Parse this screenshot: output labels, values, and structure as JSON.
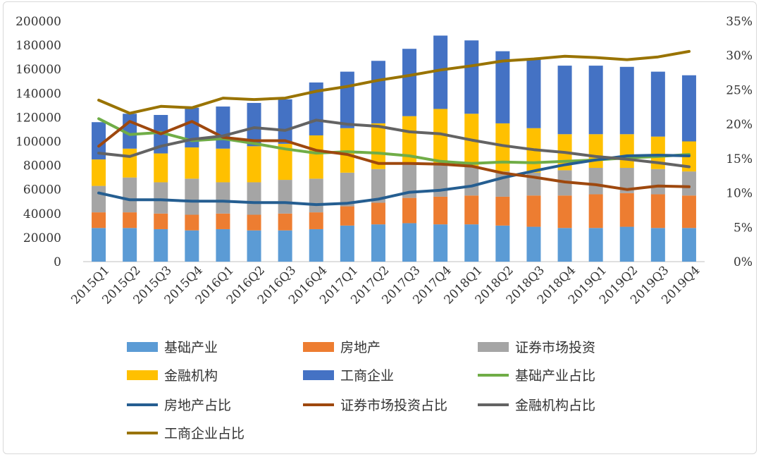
{
  "chart_data": {
    "type": "bar",
    "stacked": true,
    "categories": [
      "2015Q1",
      "2015Q2",
      "2015Q3",
      "2015Q4",
      "2016Q1",
      "2016Q2",
      "2016Q3",
      "2016Q4",
      "2017Q1",
      "2017Q2",
      "2017Q3",
      "2017Q4",
      "2018Q1",
      "2018Q2",
      "2018Q3",
      "2018Q4",
      "2019Q1",
      "2019Q2",
      "2019Q3",
      "2019Q4"
    ],
    "ylim": [
      0,
      200000
    ],
    "y_ticks": [
      "0",
      "20000",
      "40000",
      "60000",
      "80000",
      "100000",
      "120000",
      "140000",
      "160000",
      "180000",
      "200000"
    ],
    "y2lim": [
      0,
      35
    ],
    "y2_ticks": [
      "0%",
      "5%",
      "10%",
      "15%",
      "20%",
      "25%",
      "30%",
      "35%"
    ],
    "grid": false,
    "legend_position": "bottom",
    "series": [
      {
        "name": "基础产业",
        "type": "bar",
        "color": "#5B9BD5",
        "values": [
          28000,
          28000,
          27000,
          26000,
          27000,
          26000,
          26000,
          27000,
          30000,
          31000,
          32000,
          31000,
          31000,
          30000,
          29000,
          28000,
          28000,
          29000,
          28000,
          28000
        ]
      },
      {
        "name": "房地产",
        "type": "bar",
        "color": "#ED7D31",
        "values": [
          13000,
          13000,
          13000,
          13000,
          13000,
          13000,
          14000,
          14000,
          16000,
          18000,
          21000,
          23000,
          24000,
          24000,
          26000,
          27000,
          28000,
          28000,
          28000,
          27000
        ]
      },
      {
        "name": "证券市场投资",
        "type": "bar",
        "color": "#A5A5A5",
        "values": [
          22000,
          29000,
          26000,
          30000,
          26000,
          27000,
          28000,
          28000,
          28000,
          28000,
          28000,
          27000,
          24000,
          21000,
          19000,
          21000,
          22000,
          21000,
          21000,
          20000
        ]
      },
      {
        "name": "金融机构",
        "type": "bar",
        "color": "#FFC000",
        "values": [
          22000,
          24000,
          24000,
          26000,
          28000,
          30000,
          30000,
          36000,
          37000,
          38000,
          40000,
          46000,
          44000,
          40000,
          37000,
          30000,
          28000,
          28000,
          27000,
          25000
        ]
      },
      {
        "name": "工商企业",
        "type": "bar",
        "color": "#4472C4",
        "values": [
          31000,
          29000,
          32000,
          33000,
          35000,
          36000,
          37000,
          44000,
          47000,
          52000,
          56000,
          61000,
          61000,
          60000,
          57000,
          57000,
          57000,
          56000,
          54000,
          55000
        ]
      },
      {
        "name": "基础产业占比",
        "type": "line",
        "axis": "right",
        "color": "#70AD47",
        "values": [
          20.8,
          18.5,
          18.8,
          17.6,
          17.9,
          17.2,
          16.4,
          15.8,
          16.0,
          15.8,
          15.4,
          14.6,
          14.3,
          14.5,
          14.4,
          14.6,
          14.8,
          15.1,
          15.3,
          15.6
        ]
      },
      {
        "name": "房地产占比",
        "type": "line",
        "axis": "right",
        "color": "#255E91",
        "values": [
          10.0,
          9.0,
          9.0,
          8.8,
          8.8,
          8.6,
          8.6,
          8.3,
          8.5,
          9.1,
          10.1,
          10.4,
          11.0,
          12.2,
          13.2,
          14.1,
          14.8,
          15.4,
          15.5,
          15.4
        ]
      },
      {
        "name": "证券市场投资占比",
        "type": "line",
        "axis": "right",
        "color": "#9E480E",
        "values": [
          16.8,
          20.4,
          18.6,
          20.4,
          18.1,
          17.6,
          17.6,
          16.2,
          15.6,
          14.3,
          14.3,
          14.2,
          13.9,
          12.9,
          12.3,
          11.6,
          11.2,
          10.5,
          11.0,
          10.9
        ]
      },
      {
        "name": "金融机构占比",
        "type": "line",
        "axis": "right",
        "color": "#636363",
        "values": [
          15.8,
          15.3,
          16.8,
          17.8,
          18.3,
          19.5,
          19.1,
          20.6,
          20.0,
          19.7,
          18.9,
          18.6,
          17.7,
          16.9,
          16.3,
          15.9,
          15.3,
          14.9,
          14.4,
          13.8
        ]
      },
      {
        "name": "工商企业占比",
        "type": "line",
        "axis": "right",
        "color": "#997300",
        "values": [
          23.5,
          21.6,
          22.6,
          22.4,
          23.8,
          23.6,
          23.8,
          24.8,
          25.5,
          26.4,
          27.1,
          27.9,
          28.5,
          29.2,
          29.5,
          29.9,
          29.7,
          29.4,
          29.8,
          30.6
        ]
      }
    ]
  }
}
